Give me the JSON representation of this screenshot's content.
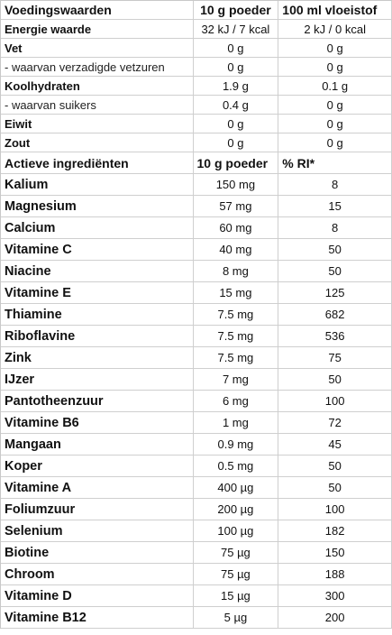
{
  "header": {
    "col1": "Voedingswaarden",
    "col2": "10 g poeder",
    "col3": "100 ml vloeistof"
  },
  "nutrition": [
    {
      "label": "Energie waarde",
      "v1": "32 kJ / 7 kcal",
      "v2": "2 kJ / 0 kcal",
      "style": "bold"
    },
    {
      "label": "Vet",
      "v1": "0 g",
      "v2": "0 g",
      "style": "bold"
    },
    {
      "label": "- waarvan verzadigde vetzuren",
      "v1": "0 g",
      "v2": "0 g",
      "style": "sub"
    },
    {
      "label": "Koolhydraten",
      "v1": "1.9 g",
      "v2": "0.1 g",
      "style": "bold"
    },
    {
      "label": "- waarvan suikers",
      "v1": "0.4 g",
      "v2": "0 g",
      "style": "sub"
    },
    {
      "label": "Eiwit",
      "v1": "0 g",
      "v2": "0 g",
      "style": "bold"
    },
    {
      "label": "Zout",
      "v1": "0 g",
      "v2": "0 g",
      "style": "bold"
    }
  ],
  "ingredients_header": {
    "col1": "Actieve ingrediënten",
    "col2": "10 g poeder",
    "col3": "% RI*"
  },
  "ingredients": [
    {
      "label": "Kalium",
      "amount": "150 mg",
      "ri": "8"
    },
    {
      "label": "Magnesium",
      "amount": "57 mg",
      "ri": "15"
    },
    {
      "label": "Calcium",
      "amount": "60 mg",
      "ri": "8"
    },
    {
      "label": "Vitamine C",
      "amount": "40 mg",
      "ri": "50"
    },
    {
      "label": "Niacine",
      "amount": "8 mg",
      "ri": "50"
    },
    {
      "label": "Vitamine E",
      "amount": "15 mg",
      "ri": "125"
    },
    {
      "label": "Thiamine",
      "amount": "7.5 mg",
      "ri": "682"
    },
    {
      "label": "Riboflavine",
      "amount": "7.5 mg",
      "ri": "536"
    },
    {
      "label": "Zink",
      "amount": "7.5 mg",
      "ri": "75"
    },
    {
      "label": "IJzer",
      "amount": "7 mg",
      "ri": "50"
    },
    {
      "label": "Pantotheenzuur",
      "amount": "6 mg",
      "ri": "100"
    },
    {
      "label": "Vitamine B6",
      "amount": "1 mg",
      "ri": "72"
    },
    {
      "label": "Mangaan",
      "amount": "0.9 mg",
      "ri": "45"
    },
    {
      "label": "Koper",
      "amount": "0.5 mg",
      "ri": "50"
    },
    {
      "label": "Vitamine A",
      "amount": "400 µg",
      "ri": "50"
    },
    {
      "label": "Foliumzuur",
      "amount": "200 µg",
      "ri": "100"
    },
    {
      "label": "Selenium",
      "amount": "100 µg",
      "ri": "182"
    },
    {
      "label": "Biotine",
      "amount": "75 µg",
      "ri": "150"
    },
    {
      "label": "Chroom",
      "amount": "75 µg",
      "ri": "188"
    },
    {
      "label": "Vitamine D",
      "amount": "15 µg",
      "ri": "300"
    },
    {
      "label": "Vitamine B12",
      "amount": "5 µg",
      "ri": "200"
    }
  ]
}
